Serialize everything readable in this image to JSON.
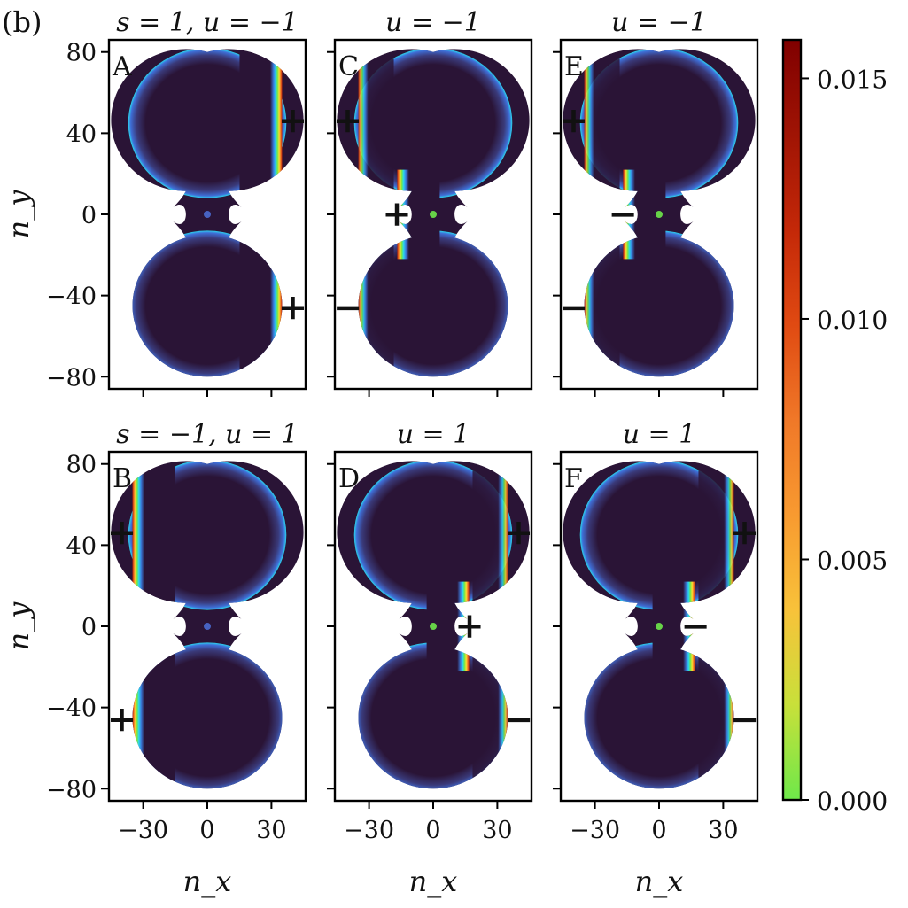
{
  "figure_label": "(b)",
  "colorbar": {
    "ticks": [
      0.0,
      0.005,
      0.01,
      0.015
    ],
    "tick_labels": [
      "0.000",
      "0.005",
      "0.010",
      "0.015"
    ],
    "vmin": 0.0,
    "vmax": 0.0158,
    "colors": [
      "#6ee84a",
      "#c8e03a",
      "#f8c23a",
      "#f89a30",
      "#f07828",
      "#e04a12",
      "#c42808",
      "#a01404",
      "#800000"
    ]
  },
  "shape_colors": {
    "interior": "#2a1436",
    "rim_blue": "#3a7ee0",
    "rim_cyan": "#2ad8ee",
    "rim_green": "#6ee84a",
    "rim_yellow": "#f8e030",
    "rim_orange": "#f07828",
    "rim_red": "#b81e06"
  },
  "chart_data": [
    {
      "type": "heatmap",
      "id": "A",
      "panel_letter": "A",
      "title_parts": [
        "s = 1,",
        "u = −1"
      ],
      "xlabel": "n_x",
      "ylabel": "n_y",
      "xlim": [
        -46,
        46
      ],
      "ylim": [
        -86,
        86
      ],
      "xticks": [
        -30,
        0,
        30
      ],
      "yticks": [
        -80,
        -40,
        0,
        40,
        80
      ],
      "xtick_labels": [
        "−30",
        "0",
        "30"
      ],
      "ytick_labels": [
        "−80",
        "−40",
        "0",
        "40",
        "80"
      ],
      "shape": {
        "lobe_radius": 35,
        "lobe_centers_y": [
          45,
          -45
        ],
        "neck_half_width": 10
      },
      "hot_edge": "right-lobes",
      "markers": [
        {
          "symbol": "+",
          "x": 40,
          "y": 46
        },
        {
          "symbol": "+",
          "x": 40,
          "y": -46
        }
      ]
    },
    {
      "type": "heatmap",
      "id": "C",
      "panel_letter": "C",
      "title_parts": [
        "u = −1"
      ],
      "xlabel": "n_x",
      "ylabel": "n_y",
      "xlim": [
        -46,
        46
      ],
      "ylim": [
        -86,
        86
      ],
      "xticks": [
        -30,
        0,
        30
      ],
      "yticks": [
        -80,
        -40,
        0,
        40,
        80
      ],
      "xtick_labels": [
        "−30",
        "0",
        "30"
      ],
      "ytick_labels": [
        "−80",
        "−40",
        "0",
        "40",
        "80"
      ],
      "shape": {
        "lobe_radius": 35,
        "lobe_centers_y": [
          45,
          -45
        ],
        "neck_half_width": 10
      },
      "hot_edge": "left-neck",
      "markers": [
        {
          "symbol": "+",
          "x": -40,
          "y": 46
        },
        {
          "symbol": "+",
          "x": -17,
          "y": 0
        },
        {
          "symbol": "−",
          "x": -40,
          "y": -46
        }
      ]
    },
    {
      "type": "heatmap",
      "id": "E",
      "panel_letter": "E",
      "title_parts": [
        "u = −1"
      ],
      "xlabel": "n_x",
      "ylabel": "n_y",
      "xlim": [
        -46,
        46
      ],
      "ylim": [
        -86,
        86
      ],
      "xticks": [
        -30,
        0,
        30
      ],
      "yticks": [
        -80,
        -40,
        0,
        40,
        80
      ],
      "xtick_labels": [
        "−30",
        "0",
        "30"
      ],
      "ytick_labels": [
        "−80",
        "−40",
        "0",
        "40",
        "80"
      ],
      "shape": {
        "lobe_radius": 35,
        "lobe_centers_y": [
          45,
          -45
        ],
        "neck_half_width": 10
      },
      "hot_edge": "left-neck",
      "markers": [
        {
          "symbol": "+",
          "x": -40,
          "y": 46
        },
        {
          "symbol": "−",
          "x": -17,
          "y": 0
        },
        {
          "symbol": "−",
          "x": -40,
          "y": -46
        }
      ]
    },
    {
      "type": "heatmap",
      "id": "B",
      "panel_letter": "B",
      "title_parts": [
        "s = −1,",
        "u = 1"
      ],
      "xlabel": "n_x",
      "ylabel": "n_y",
      "xlim": [
        -46,
        46
      ],
      "ylim": [
        -86,
        86
      ],
      "xticks": [
        -30,
        0,
        30
      ],
      "yticks": [
        -80,
        -40,
        0,
        40,
        80
      ],
      "xtick_labels": [
        "−30",
        "0",
        "30"
      ],
      "ytick_labels": [
        "−80",
        "−40",
        "0",
        "40",
        "80"
      ],
      "shape": {
        "lobe_radius": 35,
        "lobe_centers_y": [
          45,
          -45
        ],
        "neck_half_width": 10
      },
      "hot_edge": "left-lobes",
      "markers": [
        {
          "symbol": "+",
          "x": -40,
          "y": 46
        },
        {
          "symbol": "+",
          "x": -40,
          "y": -46
        }
      ]
    },
    {
      "type": "heatmap",
      "id": "D",
      "panel_letter": "D",
      "title_parts": [
        "u = 1"
      ],
      "xlabel": "n_x",
      "ylabel": "n_y",
      "xlim": [
        -46,
        46
      ],
      "ylim": [
        -86,
        86
      ],
      "xticks": [
        -30,
        0,
        30
      ],
      "yticks": [
        -80,
        -40,
        0,
        40,
        80
      ],
      "xtick_labels": [
        "−30",
        "0",
        "30"
      ],
      "ytick_labels": [
        "−80",
        "−40",
        "0",
        "40",
        "80"
      ],
      "shape": {
        "lobe_radius": 35,
        "lobe_centers_y": [
          45,
          -45
        ],
        "neck_half_width": 10
      },
      "hot_edge": "right-neck",
      "markers": [
        {
          "symbol": "+",
          "x": 40,
          "y": 46
        },
        {
          "symbol": "+",
          "x": 17,
          "y": 0
        },
        {
          "symbol": "−",
          "x": 40,
          "y": -46
        }
      ]
    },
    {
      "type": "heatmap",
      "id": "F",
      "panel_letter": "F",
      "title_parts": [
        "u = 1"
      ],
      "xlabel": "n_x",
      "ylabel": "n_y",
      "xlim": [
        -46,
        46
      ],
      "ylim": [
        -86,
        86
      ],
      "xticks": [
        -30,
        0,
        30
      ],
      "yticks": [
        -80,
        -40,
        0,
        40,
        80
      ],
      "xtick_labels": [
        "−30",
        "0",
        "30"
      ],
      "ytick_labels": [
        "−80",
        "−40",
        "0",
        "40",
        "80"
      ],
      "shape": {
        "lobe_radius": 35,
        "lobe_centers_y": [
          45,
          -45
        ],
        "neck_half_width": 10
      },
      "hot_edge": "right-neck",
      "markers": [
        {
          "symbol": "+",
          "x": 40,
          "y": 46
        },
        {
          "symbol": "−",
          "x": 17,
          "y": 0
        },
        {
          "symbol": "−",
          "x": 40,
          "y": -46
        }
      ]
    }
  ]
}
